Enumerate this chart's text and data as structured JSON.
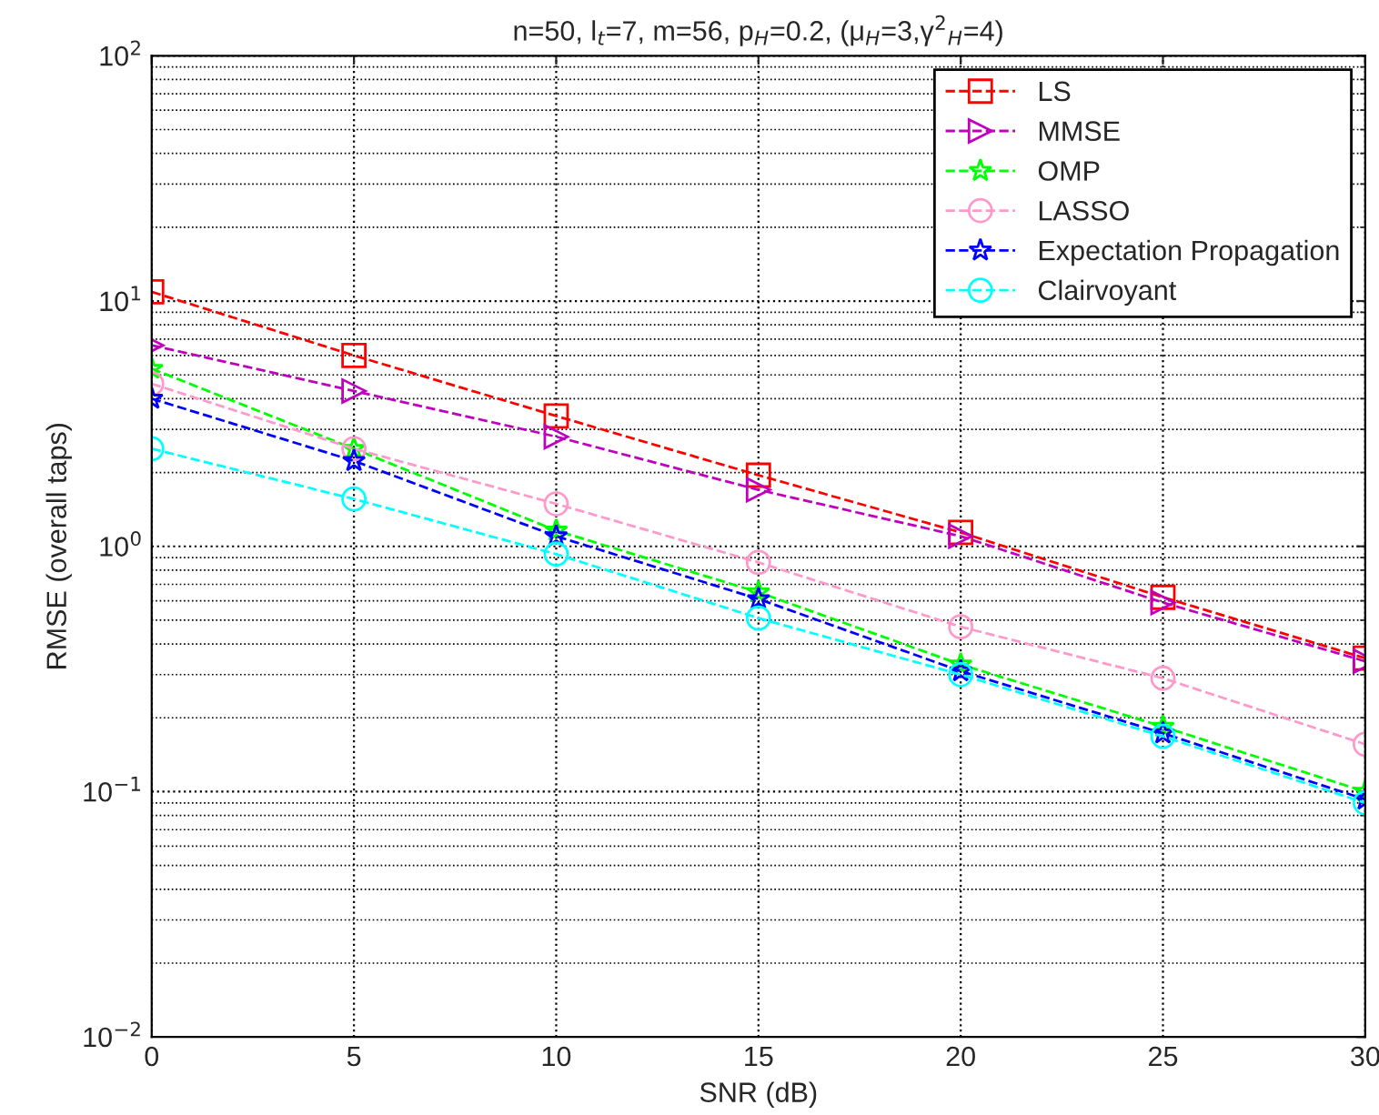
{
  "chart_data": {
    "type": "line",
    "title": "n=50, l$_{t}$=7, m=56, p$_{H}$=0.2, (μ$_{H}$=3,γ$^{2}$$_{H}$=4)",
    "xlabel": "SNR (dB)",
    "ylabel": "RMSE (overall taps)",
    "x": [
      0,
      5,
      10,
      15,
      20,
      25,
      30
    ],
    "series": [
      {
        "name": "LS",
        "color": "#ff0000",
        "marker": "square",
        "values": [
          10.9,
          6.0,
          3.4,
          1.95,
          1.14,
          0.62,
          0.35
        ]
      },
      {
        "name": "MMSE",
        "color": "#bf00bf",
        "marker": "triangle",
        "values": [
          6.6,
          4.3,
          2.8,
          1.7,
          1.1,
          0.59,
          0.34
        ]
      },
      {
        "name": "OMP",
        "color": "#00ff00",
        "marker": "star",
        "values": [
          5.3,
          2.5,
          1.16,
          0.65,
          0.33,
          0.184,
          0.1
        ]
      },
      {
        "name": "LASSO",
        "color": "#ff99cc",
        "marker": "circle",
        "values": [
          4.6,
          2.5,
          1.49,
          0.86,
          0.47,
          0.29,
          0.156
        ]
      },
      {
        "name": "Expectation Propagation",
        "color": "#0000ff",
        "marker": "star",
        "values": [
          4.0,
          2.23,
          1.1,
          0.61,
          0.31,
          0.173,
          0.093
        ]
      },
      {
        "name": "Clairvoyant",
        "color": "#00ffff",
        "marker": "circle",
        "values": [
          2.5,
          1.56,
          0.93,
          0.51,
          0.3,
          0.168,
          0.09
        ]
      }
    ],
    "log": "y",
    "xlim": [
      0,
      30
    ],
    "xticks": [
      0,
      5,
      10,
      15,
      20,
      25,
      30
    ],
    "ylim": [
      0.01,
      100
    ],
    "yticks": [
      {
        "value": 0.01,
        "label": "10$^{−2}$"
      },
      {
        "value": 0.1,
        "label": "10$^{−1}$"
      },
      {
        "value": 1,
        "label": "10$^{0}$"
      },
      {
        "value": 10,
        "label": "10$^{1}$"
      },
      {
        "value": 100,
        "label": "10$^{2}$"
      }
    ],
    "grid": true,
    "legend": "top right",
    "line_style": "dashed"
  }
}
